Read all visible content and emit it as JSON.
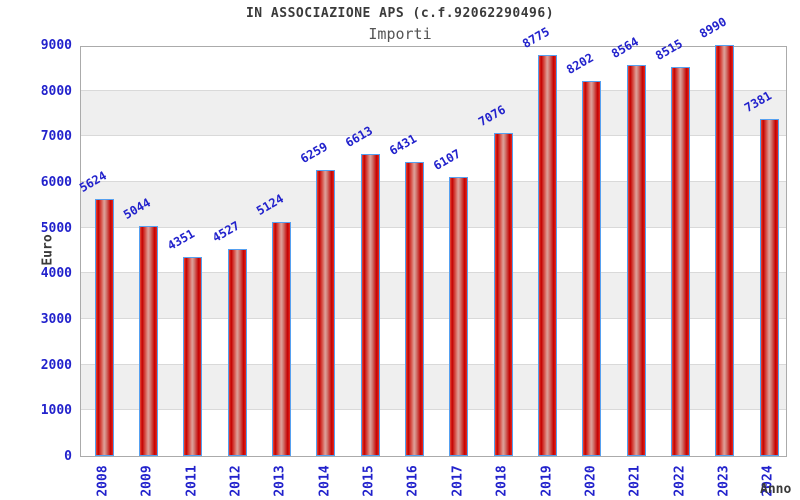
{
  "chart_data": {
    "type": "bar",
    "title": "IN ASSOCIAZIONE APS (c.f.92062290496)",
    "subtitle": "Importi",
    "xlabel": "Anno",
    "ylabel": "Euro",
    "categories": [
      "2008",
      "2009",
      "2011",
      "2012",
      "2013",
      "2014",
      "2015",
      "2016",
      "2017",
      "2018",
      "2019",
      "2020",
      "2021",
      "2022",
      "2023",
      "2024"
    ],
    "values": [
      5624,
      5044,
      4351,
      4527,
      5124,
      6259,
      6613,
      6431,
      6107,
      7076,
      8775,
      8202,
      8564,
      8515,
      8990,
      7381
    ],
    "ylim": [
      0,
      9000
    ],
    "ytick_step": 1000,
    "grid": "horizontal-bands",
    "legend": "none",
    "value_labels_rotated": true,
    "colors": {
      "label_blue": "#2222cc",
      "title_gray": "#3a3a3a",
      "subtitle_gray": "#555555",
      "bar_red": "#c40000",
      "bar_border_blue": "#55a0f0",
      "band_gray": "#efefef",
      "gridline": "#d9d9d9",
      "plot_border": "#ababab"
    }
  }
}
